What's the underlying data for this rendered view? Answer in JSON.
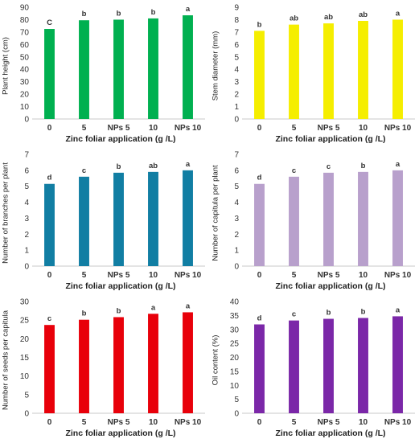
{
  "chart_data": [
    {
      "type": "bar",
      "categories": [
        "0",
        "5",
        "NPs 5",
        "10",
        "NPs 10"
      ],
      "values": [
        72.5,
        79.5,
        80,
        81,
        83.5
      ],
      "letters": [
        "C",
        "b",
        "b",
        "b",
        "a"
      ],
      "ylabel": "Plant height (cm)",
      "xlabel": "Zinc foliar application (g /L)",
      "ylim": [
        0,
        90
      ],
      "yticks": [
        0,
        10,
        20,
        30,
        40,
        50,
        60,
        70,
        80,
        90
      ],
      "color": "#00b050",
      "grid": false
    },
    {
      "type": "bar",
      "categories": [
        "0",
        "5",
        "NPs 5",
        "10",
        "NPs 10"
      ],
      "values": [
        7.1,
        7.6,
        7.7,
        7.9,
        8.0
      ],
      "letters": [
        "b",
        "ab",
        "ab",
        "ab",
        "a"
      ],
      "ylabel": "Stem diameter (mm)",
      "xlabel": "Zinc foliar application (g /L)",
      "ylim": [
        0,
        9
      ],
      "yticks": [
        0,
        1,
        2,
        3,
        4,
        5,
        6,
        7,
        8,
        9
      ],
      "color": "#f5ee00",
      "grid": false
    },
    {
      "type": "bar",
      "categories": [
        "0",
        "5",
        "NPs 5",
        "10",
        "NPs 10"
      ],
      "values": [
        5.15,
        5.6,
        5.85,
        5.9,
        6.0
      ],
      "letters": [
        "d",
        "c",
        "b",
        "ab",
        "a"
      ],
      "ylabel": "Number of branches per plant",
      "xlabel": "Zinc foliar application (g /L)",
      "ylim": [
        0,
        7
      ],
      "yticks": [
        0,
        1,
        2,
        3,
        4,
        5,
        6,
        7
      ],
      "color": "#117ea3",
      "grid": false
    },
    {
      "type": "bar",
      "categories": [
        "0",
        "5",
        "NPs 5",
        "10",
        "NPs 10"
      ],
      "values": [
        5.15,
        5.6,
        5.85,
        5.9,
        6.0
      ],
      "letters": [
        "d",
        "c",
        "c",
        "b",
        "a"
      ],
      "ylabel": "Number of capitula per plant",
      "xlabel": "Zinc foliar application (g /L)",
      "ylim": [
        0,
        7
      ],
      "yticks": [
        0,
        1,
        2,
        3,
        4,
        5,
        6,
        7
      ],
      "color": "#b8a0cc",
      "grid": false
    },
    {
      "type": "bar",
      "categories": [
        "0",
        "5",
        "NPs 5",
        "10",
        "NPs 10"
      ],
      "values": [
        23.7,
        25.1,
        25.8,
        26.7,
        27.1
      ],
      "letters": [
        "c",
        "b",
        "b",
        "a",
        "a"
      ],
      "ylabel": "Number of seeds per capitula",
      "xlabel": "Zinc foliar application (g /L)",
      "ylim": [
        0,
        30
      ],
      "yticks": [
        0,
        5,
        10,
        15,
        20,
        25,
        30
      ],
      "color": "#e8000a",
      "grid": false
    },
    {
      "type": "bar",
      "categories": [
        "0",
        "5",
        "NPs 5",
        "10",
        "NPs 10"
      ],
      "values": [
        31.8,
        33.2,
        33.8,
        34.1,
        34.7
      ],
      "letters": [
        "d",
        "c",
        "b",
        "b",
        "a"
      ],
      "ylabel": "Oil content (%)",
      "xlabel": "Zinc foliar application (g /L)",
      "ylim": [
        0,
        40
      ],
      "yticks": [
        0,
        5,
        10,
        15,
        20,
        25,
        30,
        35,
        40
      ],
      "color": "#7b27a8",
      "grid": false
    }
  ]
}
